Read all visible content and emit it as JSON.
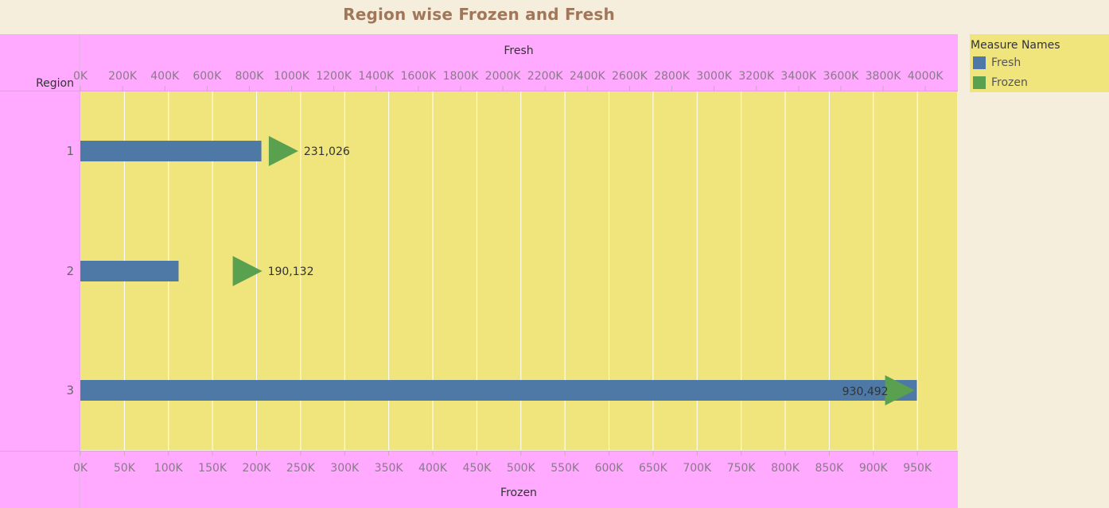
{
  "chart_data": {
    "type": "bar",
    "title": "Region wise Frozen and Fresh",
    "row_label": "Region",
    "categories": [
      "1",
      "2",
      "3"
    ],
    "series": [
      {
        "name": "Fresh",
        "axis": "top",
        "mark": "bar",
        "color": "#4e79a7",
        "values": [
          857000,
          465000,
          3960000
        ]
      },
      {
        "name": "Frozen",
        "axis": "bottom",
        "mark": "triangle",
        "color": "#59a14f",
        "values": [
          231026,
          190132,
          930492
        ],
        "data_labels": [
          "231,026",
          "190,132",
          "930,492"
        ]
      }
    ],
    "top_axis": {
      "label": "Fresh",
      "range": [
        0,
        4150000
      ],
      "ticks": [
        "0K",
        "200K",
        "400K",
        "600K",
        "800K",
        "1000K",
        "1200K",
        "1400K",
        "1600K",
        "1800K",
        "2000K",
        "2200K",
        "2400K",
        "2600K",
        "2800K",
        "3000K",
        "3200K",
        "3400K",
        "3600K",
        "3800K",
        "4000K"
      ]
    },
    "bottom_axis": {
      "label": "Frozen",
      "range": [
        0,
        995000
      ],
      "ticks": [
        "0K",
        "50K",
        "100K",
        "150K",
        "200K",
        "250K",
        "300K",
        "350K",
        "400K",
        "450K",
        "500K",
        "550K",
        "600K",
        "650K",
        "700K",
        "750K",
        "800K",
        "850K",
        "900K",
        "950K"
      ]
    },
    "grid": true,
    "legend": {
      "title": "Measure Names",
      "placement": "top-right",
      "items": [
        {
          "label": "Fresh",
          "color": "#4e79a7"
        },
        {
          "label": "Frozen",
          "color": "#59a14f"
        }
      ]
    }
  }
}
